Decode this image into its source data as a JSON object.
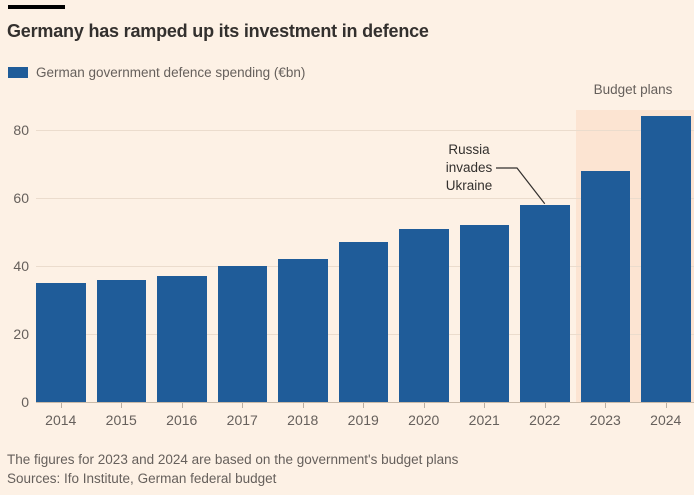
{
  "page": {
    "footer": {
      "note": "The figures for 2023 and 2024 are based on the government's budget plans",
      "sources": "Sources: Ifo Institute, German federal budget"
    }
  },
  "colors": {
    "background": "#FDF1E5",
    "bar": "#1F5C99",
    "highlight": "#FCE4D2",
    "gridline": "#EBDCCD",
    "baseline": "#C9BAA9",
    "muted_text": "#66605C",
    "title_text": "#33302E"
  },
  "chart_data": {
    "type": "bar",
    "title": "Germany has ramped up its investment in defence",
    "legend_label": "German government defence spending (€bn)",
    "categories": [
      "2014",
      "2015",
      "2016",
      "2017",
      "2018",
      "2019",
      "2020",
      "2021",
      "2022",
      "2023",
      "2024"
    ],
    "values": [
      35,
      36,
      37,
      40,
      42,
      47,
      51,
      52,
      58,
      68,
      84
    ],
    "xlabel": "",
    "ylabel": "",
    "ylim": [
      0,
      86
    ],
    "yticks": [
      0,
      20,
      40,
      60,
      80
    ],
    "grid": "horizontal",
    "legend_position": "top-left",
    "highlight": {
      "label": "Budget plans",
      "categories": [
        "2023",
        "2024"
      ]
    },
    "annotation": {
      "lines": [
        "Russia",
        "invades",
        "Ukraine"
      ],
      "target_category": "2022"
    }
  }
}
